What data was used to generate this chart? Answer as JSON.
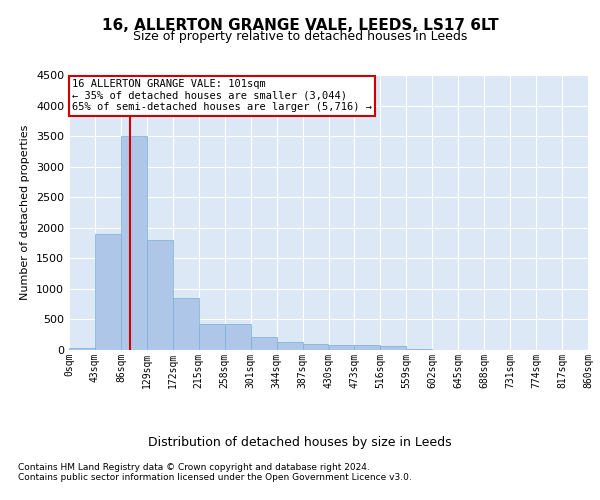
{
  "title1": "16, ALLERTON GRANGE VALE, LEEDS, LS17 6LT",
  "title2": "Size of property relative to detached houses in Leeds",
  "xlabel": "Distribution of detached houses by size in Leeds",
  "ylabel": "Number of detached properties",
  "bin_edges": [
    0,
    43,
    86,
    129,
    172,
    215,
    258,
    301,
    344,
    387,
    430,
    473,
    516,
    559,
    602,
    645,
    688,
    731,
    774,
    817,
    860
  ],
  "bin_labels": [
    "0sqm",
    "43sqm",
    "86sqm",
    "129sqm",
    "172sqm",
    "215sqm",
    "258sqm",
    "301sqm",
    "344sqm",
    "387sqm",
    "430sqm",
    "473sqm",
    "516sqm",
    "559sqm",
    "602sqm",
    "645sqm",
    "688sqm",
    "731sqm",
    "774sqm",
    "817sqm",
    "860sqm"
  ],
  "counts": [
    30,
    1900,
    3500,
    1800,
    850,
    430,
    430,
    210,
    130,
    100,
    80,
    75,
    60,
    10,
    5,
    5,
    5,
    5,
    5,
    5
  ],
  "bar_color": "#aec6e8",
  "bar_edge_color": "#7aafd4",
  "property_sqm": 101,
  "property_line_color": "#cc0000",
  "ylim": [
    0,
    4500
  ],
  "yticks": [
    0,
    500,
    1000,
    1500,
    2000,
    2500,
    3000,
    3500,
    4000,
    4500
  ],
  "annotation_line1": "16 ALLERTON GRANGE VALE: 101sqm",
  "annotation_line2": "← 35% of detached houses are smaller (3,044)",
  "annotation_line3": "65% of semi-detached houses are larger (5,716) →",
  "annotation_box_color": "#cc0000",
  "footer1": "Contains HM Land Registry data © Crown copyright and database right 2024.",
  "footer2": "Contains public sector information licensed under the Open Government Licence v3.0.",
  "bg_color": "#dce8f5",
  "grid_color": "#ffffff"
}
